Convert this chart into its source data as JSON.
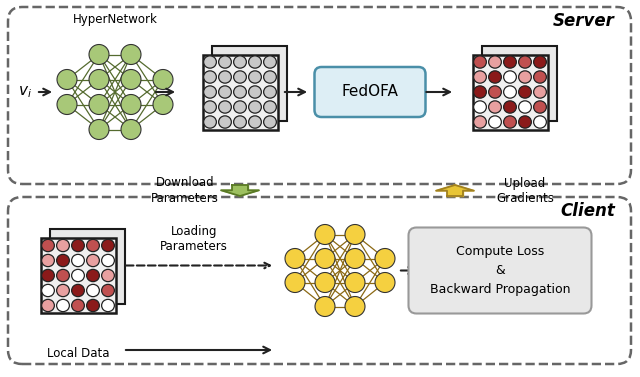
{
  "server_label": "Server",
  "client_label": "Client",
  "hypernetwork_label": "HyperNetwork",
  "fedofa_label": "FedOFA",
  "download_label": "Download\nParameters",
  "upload_label": "Upload\nGradients",
  "loading_label": "Loading\nParameters",
  "local_data_label": "Local Data",
  "compute_label": "Compute Loss\n&\nBackward Propagation",
  "green_node": "#a8c878",
  "green_edge": "#556b2f",
  "gold_node": "#f5d040",
  "gold_edge": "#8b6914",
  "dark_red": "#8b1a1a",
  "med_red": "#c05050",
  "light_red": "#e8a0a0",
  "white_col": "#ffffff",
  "gray_col": "#b8b8b8",
  "server_grid_colors": [
    "#c8c8c8",
    "#c8c8c8",
    "#c8c8c8",
    "#c8c8c8",
    "#c8c8c8",
    "#c8c8c8",
    "#c8c8c8",
    "#c8c8c8",
    "#c8c8c8",
    "#c8c8c8",
    "#c8c8c8",
    "#c8c8c8",
    "#c8c8c8",
    "#c8c8c8",
    "#c8c8c8",
    "#c8c8c8",
    "#c8c8c8",
    "#c8c8c8",
    "#c8c8c8",
    "#c8c8c8",
    "#c8c8c8",
    "#c8c8c8",
    "#c8c8c8",
    "#c8c8c8",
    "#c8c8c8"
  ],
  "red_grid_colors": [
    "#c05050",
    "#e8a0a0",
    "#8b1a1a",
    "#c05050",
    "#8b1a1a",
    "#e8a0a0",
    "#8b1a1a",
    "#ffffff",
    "#e8a0a0",
    "#c05050",
    "#8b1a1a",
    "#c05050",
    "#ffffff",
    "#8b1a1a",
    "#e8a0a0",
    "#ffffff",
    "#e8a0a0",
    "#8b1a1a",
    "#ffffff",
    "#c05050",
    "#e8a0a0",
    "#ffffff",
    "#c05050",
    "#8b1a1a",
    "#ffffff"
  ],
  "client_grid_colors": [
    "#c05050",
    "#e8a0a0",
    "#8b1a1a",
    "#c05050",
    "#8b1a1a",
    "#e8a0a0",
    "#8b1a1a",
    "#ffffff",
    "#e8a0a0",
    "#ffffff",
    "#8b1a1a",
    "#c05050",
    "#ffffff",
    "#8b1a1a",
    "#e8a0a0",
    "#ffffff",
    "#e8a0a0",
    "#8b1a1a",
    "#ffffff",
    "#c05050",
    "#e8a0a0",
    "#ffffff",
    "#c05050",
    "#8b1a1a",
    "#ffffff"
  ]
}
